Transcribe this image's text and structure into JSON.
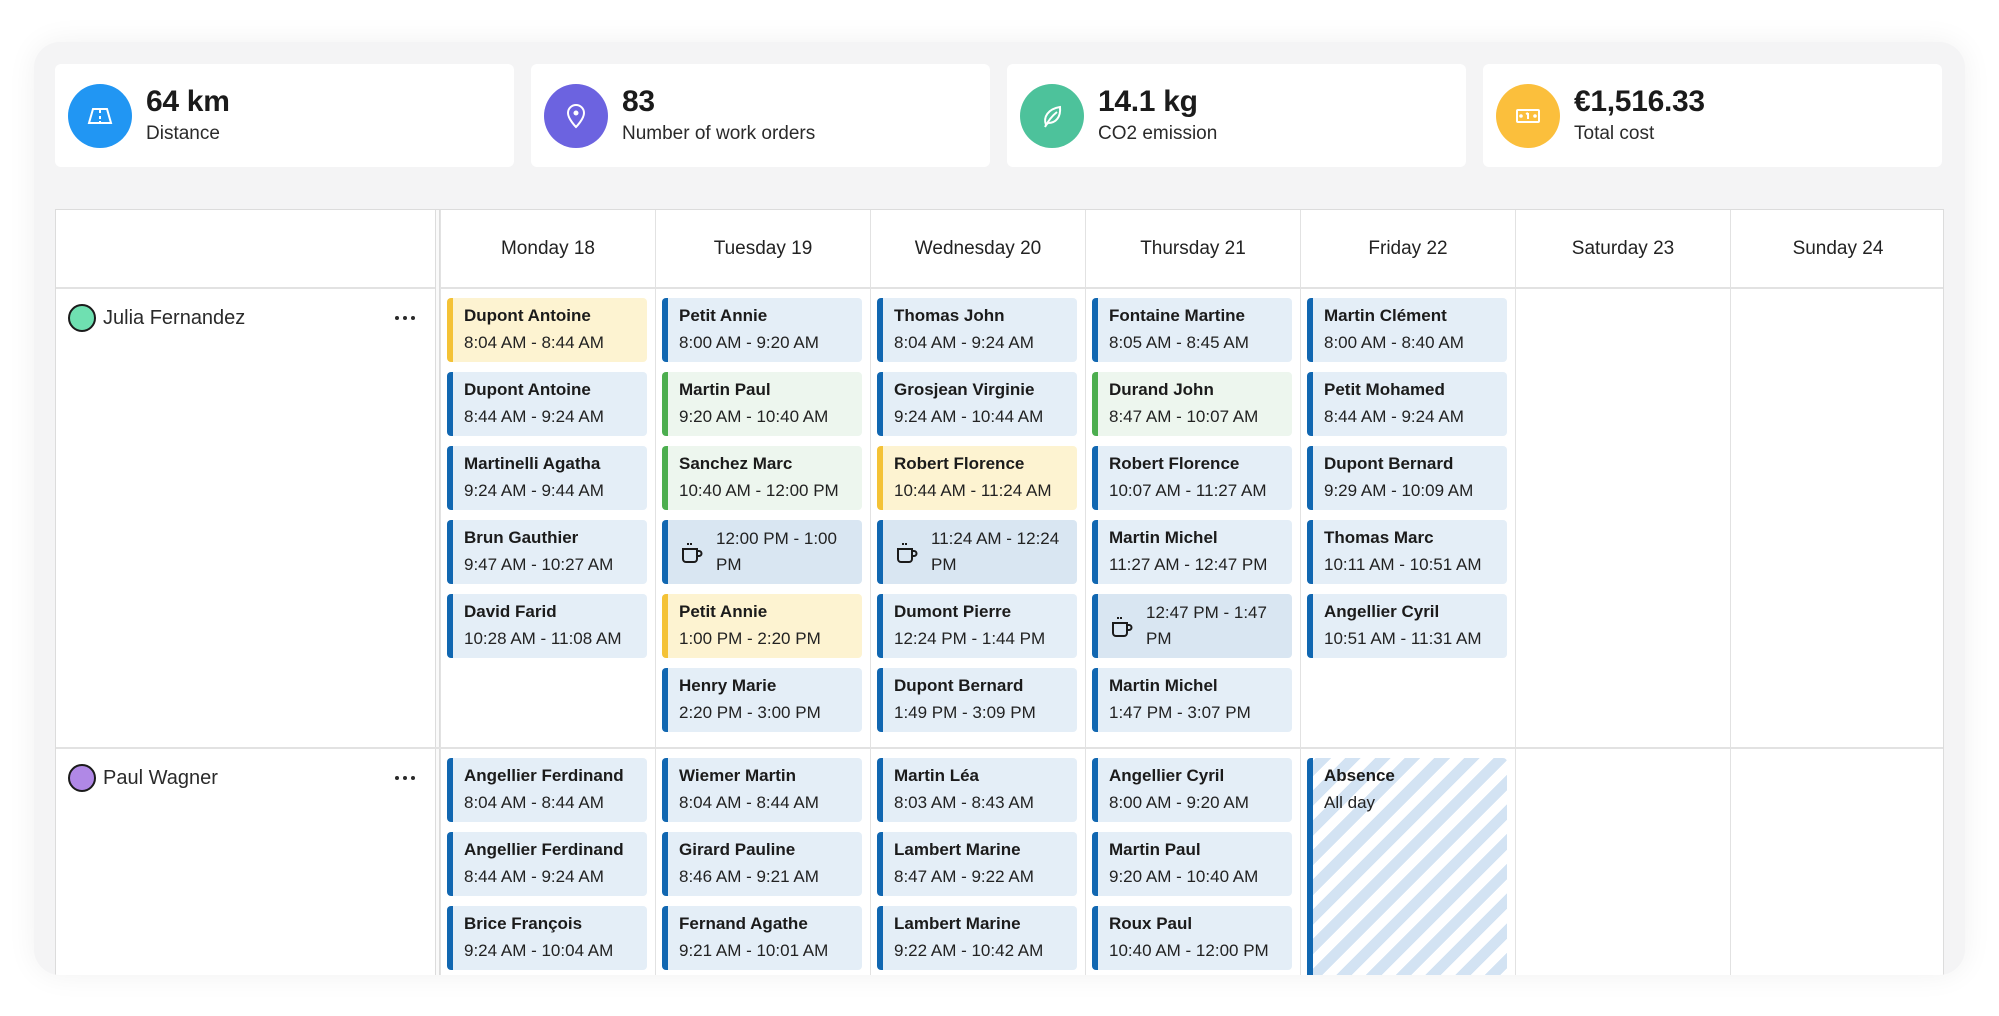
{
  "stats": [
    {
      "value": "64 km",
      "label": "Distance",
      "icon": "road-icon",
      "color": "#2196f3"
    },
    {
      "value": "83",
      "label": "Number of work orders",
      "icon": "map-pin-icon",
      "color": "#6c63e0"
    },
    {
      "value": "14.1 kg",
      "label": "CO2 emission",
      "icon": "leaf-icon",
      "color": "#4dc29b"
    },
    {
      "value": "€1,516.33",
      "label": "Total cost",
      "icon": "banknote-icon",
      "color": "#fbbf3c"
    }
  ],
  "days": [
    "Monday 18",
    "Tuesday 19",
    "Wednesday 20",
    "Thursday 21",
    "Friday 22",
    "Saturday 23",
    "Sunday 24"
  ],
  "technicians": [
    {
      "name": "Julia Fernandez",
      "color": "#6fe0b1",
      "more_icon": "more-horizontal-icon",
      "schedule": [
        [
          {
            "type": "yellow",
            "title": "Dupont Antoine",
            "time": "8:04 AM - 8:44 AM"
          },
          {
            "type": "blue",
            "title": "Dupont Antoine",
            "time": "8:44 AM - 9:24 AM"
          },
          {
            "type": "blue",
            "title": "Martinelli Agatha",
            "time": "9:24 AM - 9:44 AM"
          },
          {
            "type": "blue",
            "title": "Brun Gauthier",
            "time": "9:47 AM - 10:27 AM"
          },
          {
            "type": "blue",
            "title": "David Farid",
            "time": "10:28 AM - 11:08 AM"
          }
        ],
        [
          {
            "type": "blue",
            "title": "Petit Annie",
            "time": "8:00 AM - 9:20 AM"
          },
          {
            "type": "green",
            "title": "Martin Paul",
            "time": "9:20 AM - 10:40 AM"
          },
          {
            "type": "green",
            "title": "Sanchez Marc",
            "time": "10:40 AM - 12:00 PM"
          },
          {
            "type": "break",
            "title": "",
            "time": "12:00 PM - 1:00 PM"
          },
          {
            "type": "yellow",
            "title": "Petit Annie",
            "time": "1:00 PM - 2:20 PM"
          },
          {
            "type": "blue",
            "title": "Henry Marie",
            "time": "2:20 PM - 3:00 PM"
          }
        ],
        [
          {
            "type": "blue",
            "title": "Thomas John",
            "time": "8:04 AM - 9:24 AM"
          },
          {
            "type": "blue",
            "title": "Grosjean Virginie",
            "time": "9:24 AM - 10:44 AM"
          },
          {
            "type": "yellow",
            "title": "Robert Florence",
            "time": "10:44 AM - 11:24 AM"
          },
          {
            "type": "break",
            "title": "",
            "time": "11:24 AM - 12:24 PM"
          },
          {
            "type": "blue",
            "title": "Dumont Pierre",
            "time": "12:24 PM - 1:44 PM"
          },
          {
            "type": "blue",
            "title": "Dupont Bernard",
            "time": "1:49 PM - 3:09 PM"
          }
        ],
        [
          {
            "type": "blue",
            "title": "Fontaine Martine",
            "time": "8:05 AM - 8:45 AM"
          },
          {
            "type": "green",
            "title": "Durand John",
            "time": "8:47 AM - 10:07 AM"
          },
          {
            "type": "blue",
            "title": "Robert Florence",
            "time": "10:07 AM - 11:27 AM"
          },
          {
            "type": "blue",
            "title": "Martin Michel",
            "time": "11:27 AM - 12:47 PM"
          },
          {
            "type": "break",
            "title": "",
            "time": "12:47 PM - 1:47 PM"
          },
          {
            "type": "blue",
            "title": "Martin Michel",
            "time": "1:47 PM - 3:07 PM"
          }
        ],
        [
          {
            "type": "blue",
            "title": "Martin Clément",
            "time": "8:00 AM - 8:40 AM"
          },
          {
            "type": "blue",
            "title": "Petit Mohamed",
            "time": "8:44 AM - 9:24 AM"
          },
          {
            "type": "blue",
            "title": "Dupont Bernard",
            "time": "9:29 AM - 10:09 AM"
          },
          {
            "type": "blue",
            "title": "Thomas Marc",
            "time": "10:11 AM - 10:51 AM"
          },
          {
            "type": "blue",
            "title": "Angellier Cyril",
            "time": "10:51 AM - 11:31 AM"
          }
        ],
        [],
        []
      ]
    },
    {
      "name": "Paul Wagner",
      "color": "#b088e6",
      "more_icon": "more-horizontal-icon",
      "schedule": [
        [
          {
            "type": "blue",
            "title": "Angellier Ferdinand",
            "time": "8:04 AM - 8:44 AM"
          },
          {
            "type": "blue",
            "title": "Angellier Ferdinand",
            "time": "8:44 AM - 9:24 AM"
          },
          {
            "type": "blue",
            "title": "Brice François",
            "time": "9:24 AM - 10:04 AM"
          }
        ],
        [
          {
            "type": "blue",
            "title": "Wiemer Martin",
            "time": "8:04 AM - 8:44 AM"
          },
          {
            "type": "blue",
            "title": "Girard Pauline",
            "time": "8:46 AM - 9:21 AM"
          },
          {
            "type": "blue",
            "title": "Fernand Agathe",
            "time": "9:21 AM - 10:01 AM"
          }
        ],
        [
          {
            "type": "blue",
            "title": "Martin Léa",
            "time": "8:03 AM - 8:43 AM"
          },
          {
            "type": "blue",
            "title": "Lambert Marine",
            "time": "8:47 AM - 9:22 AM"
          },
          {
            "type": "blue",
            "title": "Lambert Marine",
            "time": "9:22 AM - 10:42 AM"
          }
        ],
        [
          {
            "type": "blue",
            "title": "Angellier Cyril",
            "time": "8:00 AM - 9:20 AM"
          },
          {
            "type": "blue",
            "title": "Martin Paul",
            "time": "9:20 AM - 10:40 AM"
          },
          {
            "type": "blue",
            "title": "Roux Paul",
            "time": "10:40 AM - 12:00 PM"
          }
        ],
        [
          {
            "type": "absence",
            "title": "Absence",
            "time": "All day"
          }
        ],
        [],
        []
      ]
    }
  ]
}
